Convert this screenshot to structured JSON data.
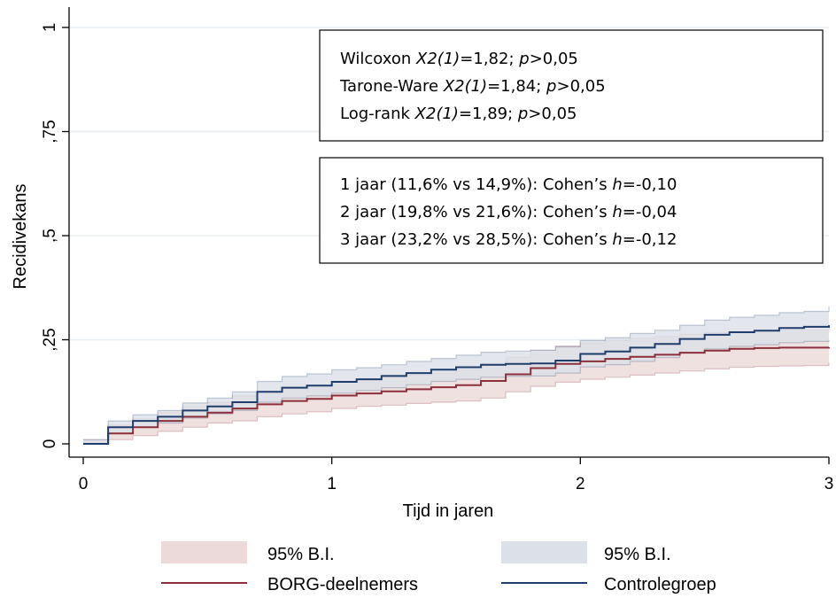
{
  "chart_data": {
    "type": "line",
    "xlabel": "Tijd in jaren",
    "ylabel": "Recidivekans",
    "xlim": [
      0,
      3
    ],
    "ylim": [
      0,
      1
    ],
    "x_ticks": [
      {
        "value": 0,
        "label": "0"
      },
      {
        "value": 1,
        "label": "1"
      },
      {
        "value": 2,
        "label": "2"
      },
      {
        "value": 3,
        "label": "3"
      }
    ],
    "y_ticks": [
      {
        "value": 0,
        "label": "0"
      },
      {
        "value": 0.25,
        "label": ",25"
      },
      {
        "value": 0.5,
        "label": ",5"
      },
      {
        "value": 0.75,
        "label": ",75"
      },
      {
        "value": 1,
        "label": "1"
      }
    ],
    "grid": true,
    "legend_position": "bottom",
    "series": [
      {
        "name": "BORG-deelnemers",
        "color": "#8b2f3a",
        "ci_color": "#ecd9da",
        "ci_label": "95% B.I.",
        "x": [
          0,
          0.1,
          0.2,
          0.3,
          0.4,
          0.5,
          0.6,
          0.7,
          0.8,
          0.9,
          1.0,
          1.1,
          1.2,
          1.3,
          1.4,
          1.5,
          1.6,
          1.7,
          1.8,
          1.9,
          2.0,
          2.1,
          2.2,
          2.3,
          2.4,
          2.5,
          2.6,
          2.7,
          2.8,
          2.9,
          3.0
        ],
        "y": [
          0,
          0.025,
          0.04,
          0.055,
          0.065,
          0.075,
          0.085,
          0.095,
          0.103,
          0.108,
          0.116,
          0.121,
          0.126,
          0.131,
          0.136,
          0.141,
          0.151,
          0.167,
          0.182,
          0.192,
          0.198,
          0.204,
          0.209,
          0.214,
          0.219,
          0.224,
          0.228,
          0.23,
          0.231,
          0.231,
          0.232
        ],
        "lower": [
          0,
          0.01,
          0.02,
          0.03,
          0.04,
          0.05,
          0.055,
          0.065,
          0.072,
          0.077,
          0.085,
          0.09,
          0.093,
          0.097,
          0.1,
          0.103,
          0.11,
          0.125,
          0.138,
          0.148,
          0.155,
          0.16,
          0.165,
          0.17,
          0.175,
          0.18,
          0.184,
          0.186,
          0.187,
          0.188,
          0.195
        ],
        "upper": [
          0.01,
          0.045,
          0.06,
          0.075,
          0.09,
          0.1,
          0.115,
          0.125,
          0.135,
          0.14,
          0.15,
          0.155,
          0.16,
          0.165,
          0.17,
          0.178,
          0.192,
          0.208,
          0.225,
          0.235,
          0.242,
          0.248,
          0.253,
          0.258,
          0.263,
          0.267,
          0.27,
          0.272,
          0.273,
          0.274,
          0.28
        ]
      },
      {
        "name": "Controlegroep",
        "color": "#1f3d6b",
        "ci_color": "#dce1e9",
        "ci_label": "95% B.I.",
        "x": [
          0,
          0.1,
          0.2,
          0.3,
          0.4,
          0.5,
          0.6,
          0.7,
          0.8,
          0.9,
          1.0,
          1.1,
          1.2,
          1.3,
          1.4,
          1.5,
          1.6,
          1.7,
          1.8,
          1.9,
          2.0,
          2.1,
          2.2,
          2.3,
          2.4,
          2.5,
          2.6,
          2.7,
          2.8,
          2.9,
          3.0
        ],
        "y": [
          0,
          0.04,
          0.055,
          0.065,
          0.08,
          0.09,
          0.1,
          0.125,
          0.135,
          0.14,
          0.149,
          0.155,
          0.163,
          0.17,
          0.178,
          0.184,
          0.19,
          0.192,
          0.193,
          0.2,
          0.216,
          0.222,
          0.231,
          0.24,
          0.252,
          0.262,
          0.268,
          0.272,
          0.278,
          0.281,
          0.285
        ],
        "lower": [
          0,
          0.025,
          0.04,
          0.05,
          0.062,
          0.072,
          0.08,
          0.1,
          0.11,
          0.115,
          0.122,
          0.128,
          0.135,
          0.142,
          0.15,
          0.155,
          0.16,
          0.162,
          0.163,
          0.17,
          0.185,
          0.19,
          0.198,
          0.207,
          0.218,
          0.228,
          0.234,
          0.238,
          0.243,
          0.246,
          0.25
        ],
        "upper": [
          0.01,
          0.055,
          0.07,
          0.08,
          0.098,
          0.11,
          0.125,
          0.15,
          0.162,
          0.168,
          0.178,
          0.183,
          0.19,
          0.198,
          0.205,
          0.213,
          0.22,
          0.223,
          0.225,
          0.233,
          0.248,
          0.255,
          0.265,
          0.273,
          0.285,
          0.297,
          0.304,
          0.309,
          0.315,
          0.318,
          0.33
        ]
      }
    ],
    "annotations": {
      "tests": [
        {
          "name": "Wilcoxon",
          "stat": "X2(1)",
          "value": "=1,82; ",
          "p": "p",
          "p_value": ">0,05"
        },
        {
          "name": "Tarone-Ware",
          "stat": "X2(1)",
          "value": "=1,84; ",
          "p": "p",
          "p_value": ">0,05"
        },
        {
          "name": "Log-rank",
          "stat": "X2(1)",
          "value": "=1,89; ",
          "p": "p",
          "p_value": ">0,05"
        }
      ],
      "cohens_h": [
        {
          "prefix": "1 jaar (11,6% vs 14,9%): Cohen’s ",
          "h": "h",
          "value": "=-0,10"
        },
        {
          "prefix": "2 jaar (19,8% vs 21,6%): Cohen’s ",
          "h": "h",
          "value": "=-0,04"
        },
        {
          "prefix": "3 jaar (23,2% vs 28,5%): Cohen’s ",
          "h": "h",
          "value": "=-0,12"
        }
      ]
    }
  }
}
